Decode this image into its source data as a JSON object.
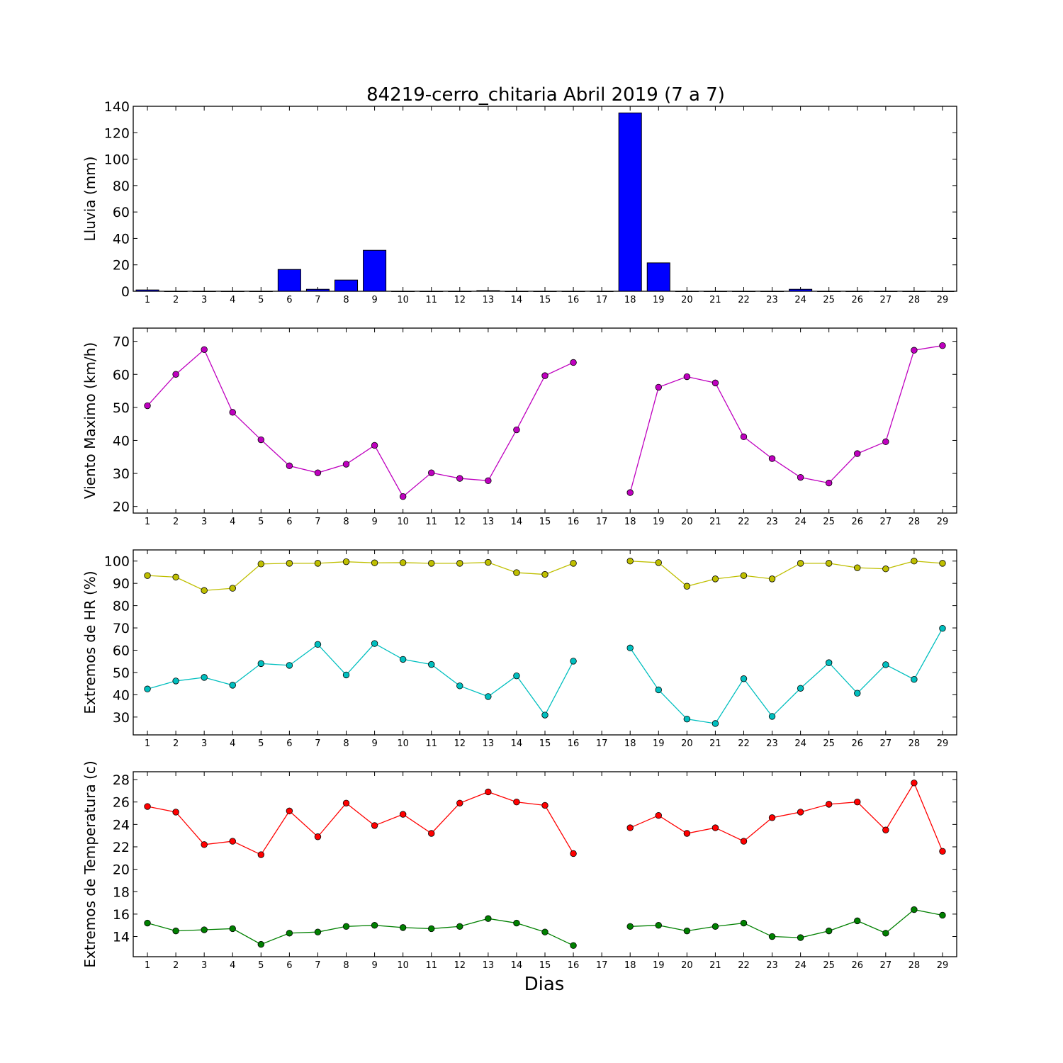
{
  "title": "84219-cerro_chitaria Abril 2019  (7 a 7)",
  "xlabel": "Dias",
  "chart_data": [
    {
      "type": "bar",
      "ylabel": "Lluvia (mm)",
      "ylim": [
        0,
        140
      ],
      "yticks": [
        0,
        20,
        40,
        60,
        80,
        100,
        120,
        140
      ],
      "categories": [
        1,
        2,
        3,
        4,
        5,
        6,
        7,
        8,
        9,
        10,
        11,
        12,
        13,
        14,
        15,
        16,
        17,
        18,
        19,
        20,
        21,
        22,
        23,
        24,
        25,
        26,
        27,
        28,
        29
      ],
      "series": [
        {
          "color": "#0000ff",
          "values": [
            1.0,
            0,
            0,
            0,
            0,
            16.5,
            1.5,
            8.5,
            31,
            0,
            0,
            0,
            0.5,
            0,
            0,
            0,
            0,
            135,
            21.5,
            0,
            0,
            0,
            0,
            1.5,
            0,
            0,
            0,
            0,
            0
          ]
        }
      ]
    },
    {
      "type": "line",
      "ylabel": "Viento Maximo (km/h)",
      "ylim": [
        18,
        74
      ],
      "yticks": [
        20,
        30,
        40,
        50,
        60,
        70
      ],
      "categories": [
        1,
        2,
        3,
        4,
        5,
        6,
        7,
        8,
        9,
        10,
        11,
        12,
        13,
        14,
        15,
        16,
        17,
        18,
        19,
        20,
        21,
        22,
        23,
        24,
        25,
        26,
        27,
        28,
        29
      ],
      "series": [
        {
          "color": "#bf00bf",
          "values": [
            50.5,
            60,
            67.5,
            48.5,
            40.2,
            32.3,
            30.2,
            32.8,
            38.5,
            23,
            30.2,
            28.5,
            27.8,
            43.2,
            59.6,
            63.6,
            null,
            24.2,
            56.1,
            59.3,
            57.4,
            41.1,
            34.5,
            28.8,
            27.1,
            36,
            39.6,
            67.3,
            68.7
          ]
        }
      ]
    },
    {
      "type": "line",
      "ylabel": "Extremos de HR (%)",
      "ylim": [
        22,
        105
      ],
      "yticks": [
        30,
        40,
        50,
        60,
        70,
        80,
        90,
        100
      ],
      "categories": [
        1,
        2,
        3,
        4,
        5,
        6,
        7,
        8,
        9,
        10,
        11,
        12,
        13,
        14,
        15,
        16,
        17,
        18,
        19,
        20,
        21,
        22,
        23,
        24,
        25,
        26,
        27,
        28,
        29
      ],
      "series": [
        {
          "color": "#bfbf00",
          "values": [
            93.5,
            92.8,
            86.8,
            87.8,
            98.7,
            99,
            99,
            99.7,
            99.2,
            99.3,
            99,
            99,
            99.4,
            94.8,
            94,
            99,
            null,
            100,
            99.3,
            88.7,
            92,
            93.5,
            92,
            99,
            99,
            97,
            96.5,
            100,
            99
          ]
        },
        {
          "color": "#00bfbf",
          "values": [
            42.6,
            46.2,
            47.8,
            44.3,
            54,
            53.2,
            62.6,
            48.9,
            63,
            55.9,
            53.6,
            44,
            39.2,
            48.5,
            30.9,
            55.1,
            null,
            61,
            42.2,
            29.1,
            27.1,
            47.2,
            30.3,
            42.9,
            54.4,
            40.7,
            53.5,
            46.9,
            69.8
          ]
        }
      ]
    },
    {
      "type": "line",
      "ylabel": "Extremos de Temperatura (c)",
      "ylim": [
        12.2,
        28.7
      ],
      "yticks": [
        14,
        16,
        18,
        20,
        22,
        24,
        26,
        28
      ],
      "categories": [
        1,
        2,
        3,
        4,
        5,
        6,
        7,
        8,
        9,
        10,
        11,
        12,
        13,
        14,
        15,
        16,
        17,
        18,
        19,
        20,
        21,
        22,
        23,
        24,
        25,
        26,
        27,
        28,
        29
      ],
      "series": [
        {
          "color": "#ff0000",
          "values": [
            25.6,
            25.1,
            22.2,
            22.5,
            21.3,
            25.2,
            22.9,
            25.9,
            23.9,
            24.9,
            23.2,
            25.9,
            26.9,
            26,
            25.7,
            21.4,
            null,
            23.7,
            24.8,
            23.2,
            23.7,
            22.5,
            24.6,
            25.1,
            25.8,
            26,
            23.5,
            27.7,
            21.6
          ]
        },
        {
          "color": "#008000",
          "values": [
            15.2,
            14.5,
            14.6,
            14.7,
            13.3,
            14.3,
            14.4,
            14.9,
            15,
            14.8,
            14.7,
            14.9,
            15.6,
            15.2,
            14.4,
            13.2,
            null,
            14.9,
            15,
            14.5,
            14.9,
            15.2,
            14,
            13.9,
            14.5,
            15.4,
            14.3,
            16.4,
            15.9
          ]
        }
      ]
    }
  ]
}
